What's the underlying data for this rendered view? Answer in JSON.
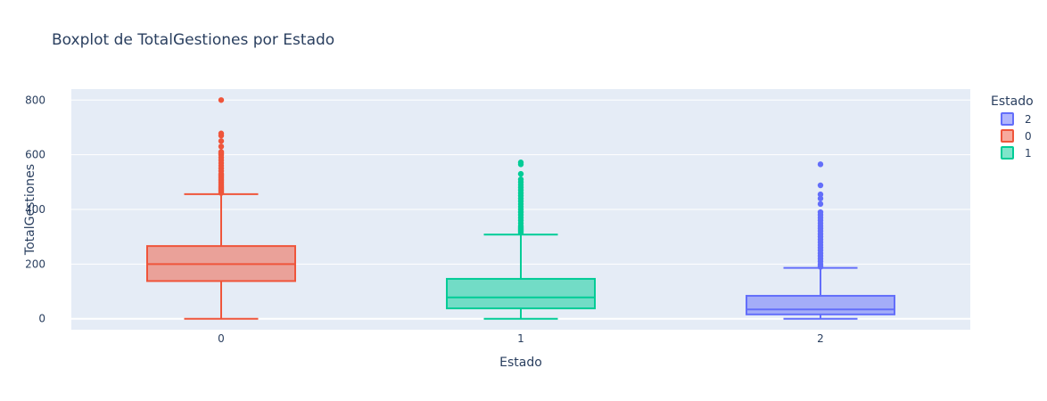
{
  "chart_data": {
    "type": "box",
    "title": "Boxplot de TotalGestiones por Estado",
    "xlabel": "Estado",
    "ylabel": "TotalGestiones",
    "categories": [
      "0",
      "1",
      "2"
    ],
    "ylim": [
      -40,
      840
    ],
    "yticks": [
      0,
      200,
      400,
      600,
      800
    ],
    "grid": true,
    "legend": {
      "title": "Estado",
      "position": "right",
      "entries": [
        "2",
        "0",
        "1"
      ]
    },
    "series": [
      {
        "name": "0",
        "x": "0",
        "color": "#EF553B",
        "fill": "#EF553B",
        "min": 0,
        "q1": 138,
        "median": 200,
        "q3": 266,
        "upper_fence": 456,
        "outliers": [
          460,
          465,
          470,
          475,
          480,
          485,
          490,
          495,
          500,
          505,
          510,
          515,
          520,
          525,
          530,
          540,
          550,
          560,
          570,
          580,
          590,
          600,
          605,
          610,
          630,
          650,
          670,
          678,
          800
        ]
      },
      {
        "name": "1",
        "x": "1",
        "color": "#00CC96",
        "fill": "#00CC96",
        "min": 0,
        "q1": 38,
        "median": 78,
        "q3": 146,
        "upper_fence": 308,
        "outliers": [
          315,
          320,
          325,
          330,
          335,
          340,
          350,
          360,
          370,
          380,
          390,
          400,
          410,
          420,
          430,
          440,
          450,
          460,
          470,
          480,
          490,
          500,
          510,
          530,
          565,
          572
        ]
      },
      {
        "name": "2",
        "x": "2",
        "color": "#636EFA",
        "fill": "#636EFA",
        "min": 0,
        "q1": 16,
        "median": 34,
        "q3": 84,
        "upper_fence": 186,
        "outliers": [
          190,
          195,
          200,
          210,
          220,
          230,
          240,
          250,
          260,
          270,
          280,
          290,
          300,
          310,
          320,
          330,
          340,
          350,
          360,
          370,
          380,
          390,
          420,
          440,
          455,
          488,
          565
        ]
      }
    ]
  }
}
